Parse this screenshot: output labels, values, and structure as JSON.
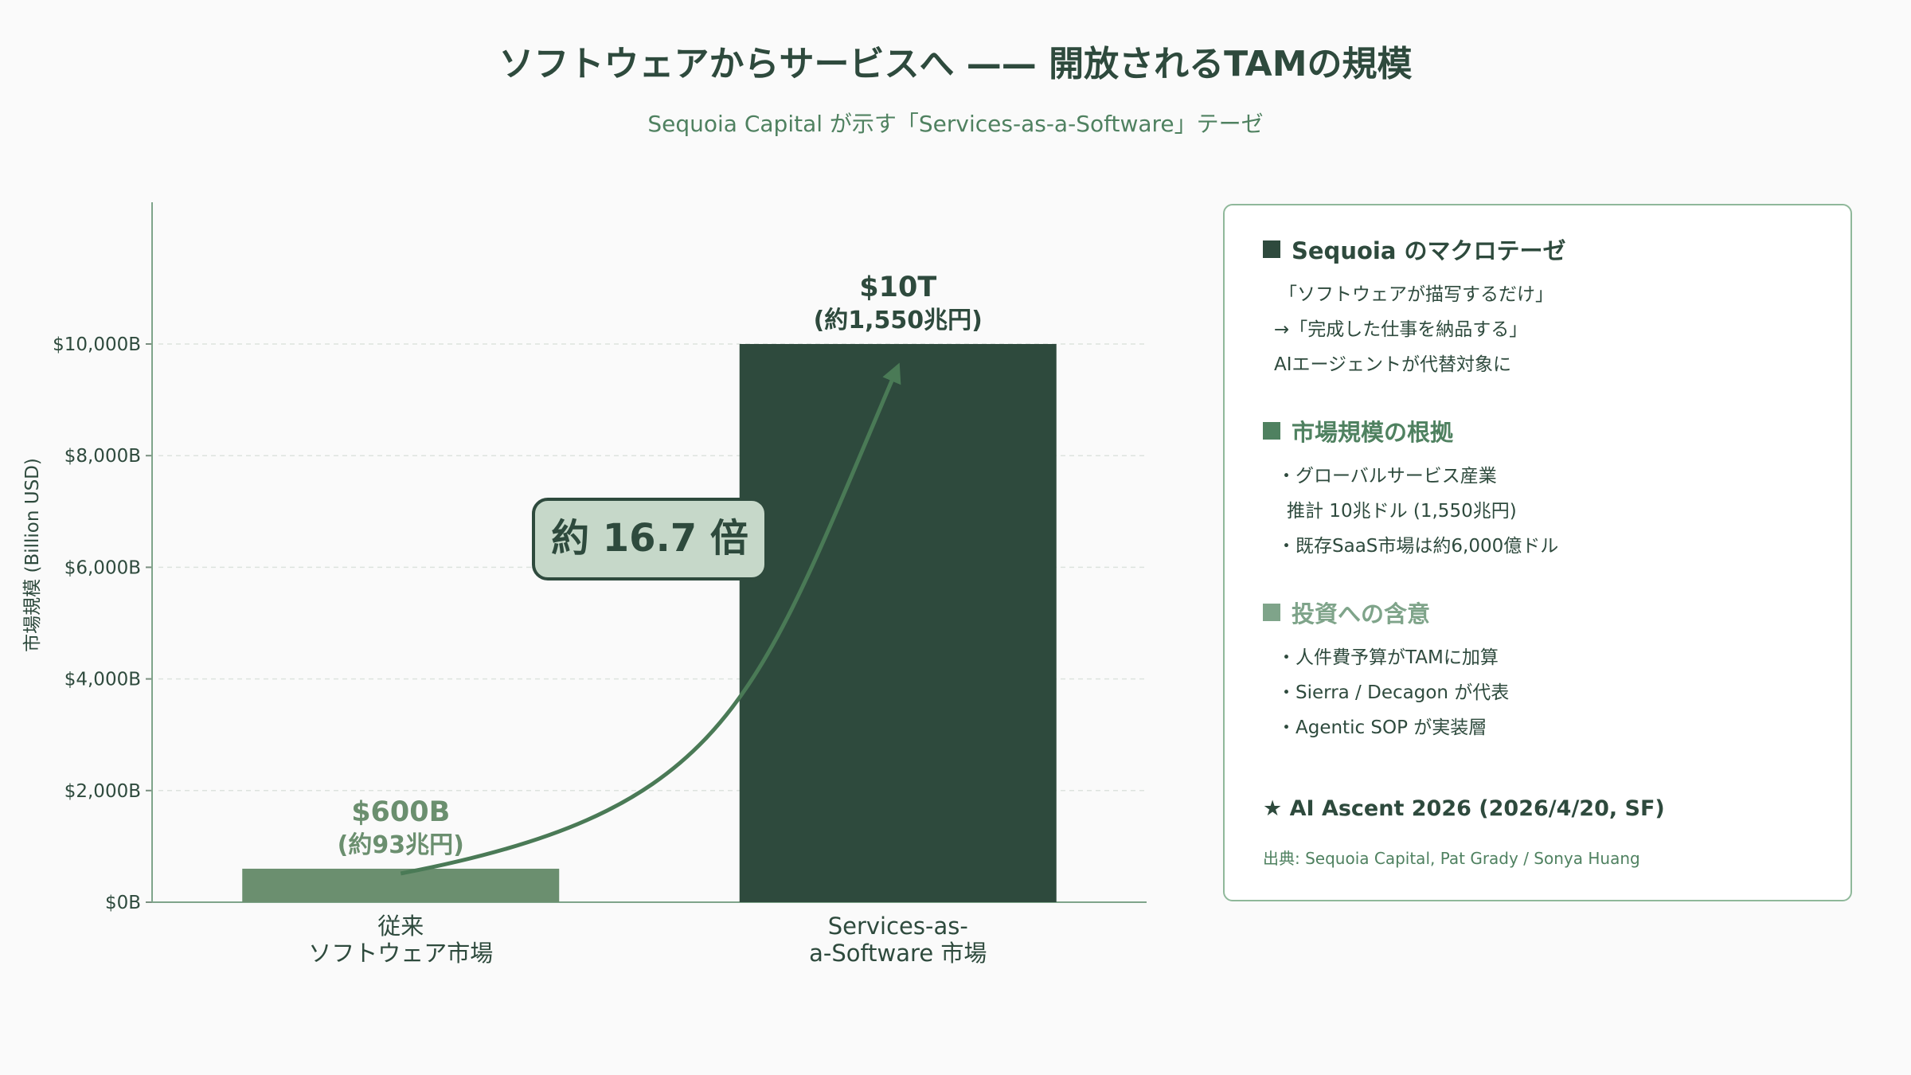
{
  "title": "ソフトウェアからサービスへ —— 開放されるTAMの規模",
  "subtitle": "Sequoia Capital が示す「Services-as-a-Software」テーゼ",
  "colors": {
    "title": "#2e4a3d",
    "accent": "#4f8160",
    "bar_software": "#6b8f6f",
    "bar_services": "#2e4a3d",
    "arrow": "#4a7a56",
    "multiplier_fill": "#c6d8c9",
    "panel_border": "#8fb89a"
  },
  "chart_data": {
    "type": "bar",
    "ylabel": "市場規模 (Billion USD)",
    "xlabel": "",
    "ylim": [
      0,
      12500
    ],
    "yticks": [
      0,
      2000,
      4000,
      6000,
      8000,
      10000
    ],
    "ytick_labels": [
      "$0B",
      "$2,000B",
      "$4,000B",
      "$6,000B",
      "$8,000B",
      "$10,000B"
    ],
    "grid": true,
    "categories": [
      [
        "従来",
        "ソフトウェア市場"
      ],
      [
        "Services-as-",
        "a-Software 市場"
      ]
    ],
    "values": [
      600,
      10000
    ],
    "data_labels": [
      [
        "$600B",
        "(約93兆円)"
      ],
      [
        "$10T",
        "(約1,550兆円)"
      ]
    ],
    "annotation": "約 16.7 倍"
  },
  "panel": {
    "sections": [
      {
        "heading": "Sequoia のマクロテーゼ",
        "color": "#2e4a3d",
        "lines": [
          "「ソフトウェアが描写するだけ」",
          "→「完成した仕事を納品する」",
          "AIエージェントが代替対象に"
        ]
      },
      {
        "heading": "市場規模の根拠",
        "color": "#4f8160",
        "lines": [
          "・グローバルサービス産業",
          "推計 10兆ドル (1,550兆円)",
          "・既存SaaS市場は約6,000億ドル"
        ]
      },
      {
        "heading": "投資への含意",
        "color": "#7fa48a",
        "lines": [
          "・人件費予算がTAMに加算",
          "・Sierra / Decagon が代表",
          "・Agentic SOP が実装層"
        ]
      }
    ],
    "event": "★ AI Ascent 2026 (2026/4/20, SF)",
    "source": "出典: Sequoia Capital, Pat Grady / Sonya Huang"
  }
}
